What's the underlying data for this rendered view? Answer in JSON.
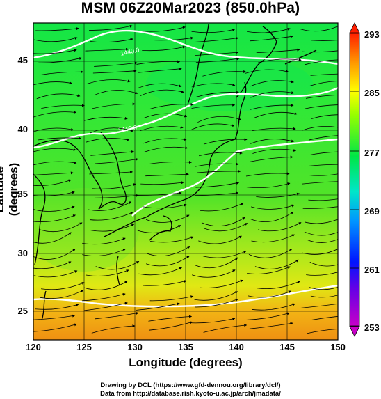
{
  "title": "MSM 06Z20Mar2023 (850.0hPa)",
  "axes": {
    "xlabel": "Longitude (degrees)",
    "ylabel": "Latitude  (degrees)",
    "xticks": [
      "120",
      "125",
      "130",
      "135",
      "140",
      "145",
      "150"
    ],
    "yticks": [
      "25",
      "30",
      "35",
      "40",
      "45"
    ],
    "xlim": [
      120,
      150
    ],
    "ylim": [
      22.5,
      47.7
    ]
  },
  "colorbar": {
    "ticks": [
      "253",
      "261",
      "269",
      "277",
      "285",
      "293"
    ],
    "range": [
      253,
      293
    ],
    "colors": [
      "#c800c8",
      "#3200ff",
      "#0096ff",
      "#00e6b4",
      "#00e646",
      "#ffff00",
      "#ff9600",
      "#ff1e00"
    ]
  },
  "contour_labels": [
    "1440.0",
    "1440.0"
  ],
  "credits": {
    "line1": "Drawing by DCL (https://www.gfd-dennou.org/library/dcl/)",
    "line2": "Data from http://database.rish.kyoto-u.ac.jp/arch/jmadata/"
  }
}
